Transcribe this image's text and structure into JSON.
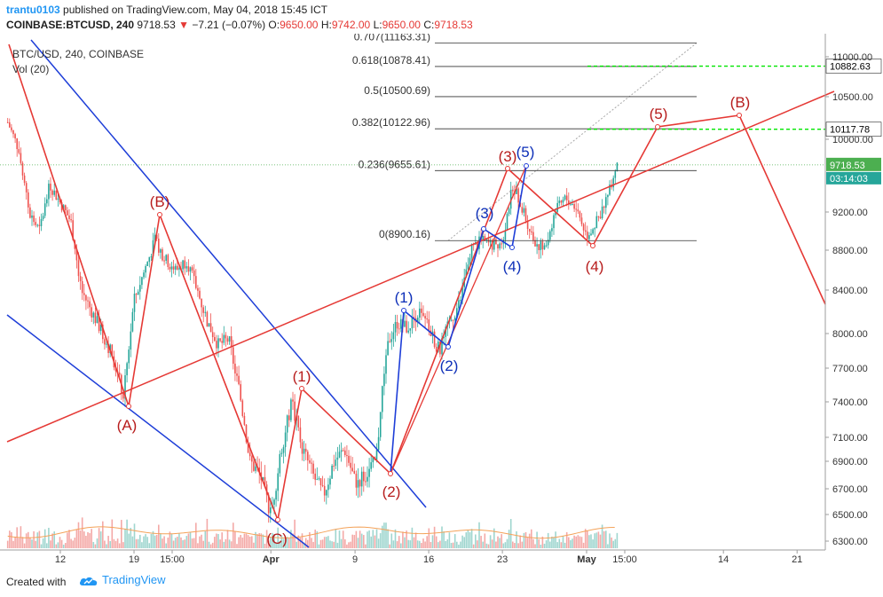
{
  "header": {
    "user": "trantu0103",
    "published_text": "published on TradingView.com, May 04, 2018 15:45 ICT",
    "symbol_label": "COINBASE:BTCUSD, 240",
    "last_price": "9718.53",
    "change_arrow": "▼",
    "change": "−7.21 (−0.07%)",
    "o_label": "O:",
    "o_value": "9650.00",
    "h_label": "H:",
    "h_value": "9742.00",
    "l_label": "L:",
    "l_value": "9650.00",
    "c_label": "C:",
    "c_value": "9718.53"
  },
  "legend": {
    "series": "BTC/USD, 240, COINBASE",
    "volume": "Vol (20)"
  },
  "footer": {
    "created_with": "Created with",
    "brand": "TradingView"
  },
  "colors": {
    "up": "#26a69a",
    "down": "#ef5350",
    "wave_red": "#e53935",
    "wave_blue": "#1e3ed8",
    "label_red": "#b71c1c",
    "label_blue": "#0d2fb8",
    "fib_line": "#555555",
    "target_green": "#00e600",
    "price_tag": "#4caf50",
    "time_tag": "#26a69a"
  },
  "chart_data": {
    "type": "candlestick",
    "y_axis": {
      "position": "right",
      "min": 6300,
      "max": 11000,
      "ticks": [
        6300,
        6500,
        6700,
        6900,
        7100,
        7400,
        7700,
        8000,
        8400,
        8800,
        9200,
        10000,
        10500,
        11000
      ],
      "tick_labels": [
        "6300.00",
        "6500.00",
        "6700.00",
        "6900.00",
        "7100.00",
        "7400.00",
        "7700.00",
        "8000.00",
        "8400.00",
        "8800.00",
        "9200.00",
        "10000.00",
        "10500.00",
        "11000.00"
      ]
    },
    "x_axis": {
      "tick_labels": [
        "12",
        "19",
        "15:00",
        "Apr",
        "9",
        "16",
        "23",
        "May",
        "15:00",
        "14",
        "21"
      ],
      "tick_dates": [
        "2018-03-12",
        "2018-03-19",
        "2018-03-22 15:00",
        "2018-04-01",
        "2018-04-09",
        "2018-04-16",
        "2018-04-23",
        "2018-05-01",
        "2018-05-04 15:00",
        "2018-05-14",
        "2018-05-21"
      ]
    },
    "price_path": [
      [
        "2018-03-07",
        10200
      ],
      [
        "2018-03-08",
        9900
      ],
      [
        "2018-03-09",
        9200
      ],
      [
        "2018-03-10",
        9000
      ],
      [
        "2018-03-11",
        9500
      ],
      [
        "2018-03-12",
        9300
      ],
      [
        "2018-03-13",
        9100
      ],
      [
        "2018-03-14",
        8400
      ],
      [
        "2018-03-15",
        8200
      ],
      [
        "2018-03-16",
        8000
      ],
      [
        "2018-03-17",
        7800
      ],
      [
        "2018-03-18",
        7450
      ],
      [
        "2018-03-19",
        8300
      ],
      [
        "2018-03-20",
        8600
      ],
      [
        "2018-03-21",
        8900
      ],
      [
        "2018-03-22",
        8700
      ],
      [
        "2018-03-23",
        8600
      ],
      [
        "2018-03-24",
        8700
      ],
      [
        "2018-03-25",
        8400
      ],
      [
        "2018-03-26",
        8100
      ],
      [
        "2018-03-27",
        7900
      ],
      [
        "2018-03-28",
        7950
      ],
      [
        "2018-03-29",
        7500
      ],
      [
        "2018-03-30",
        6900
      ],
      [
        "2018-03-31",
        6800
      ],
      [
        "2018-04-01",
        6500
      ],
      [
        "2018-04-02",
        7000
      ],
      [
        "2018-04-03",
        7400
      ],
      [
        "2018-04-04",
        7000
      ],
      [
        "2018-04-05",
        6800
      ],
      [
        "2018-04-06",
        6650
      ],
      [
        "2018-04-07",
        6900
      ],
      [
        "2018-04-08",
        7000
      ],
      [
        "2018-04-09",
        6750
      ],
      [
        "2018-04-10",
        6800
      ],
      [
        "2018-04-11",
        6900
      ],
      [
        "2018-04-12",
        7900
      ],
      [
        "2018-04-13",
        8100
      ],
      [
        "2018-04-14",
        8050
      ],
      [
        "2018-04-15",
        8200
      ],
      [
        "2018-04-16",
        8050
      ],
      [
        "2018-04-17",
        7850
      ],
      [
        "2018-04-18",
        8100
      ],
      [
        "2018-04-19",
        8300
      ],
      [
        "2018-04-20",
        8800
      ],
      [
        "2018-04-21",
        8900
      ],
      [
        "2018-04-22",
        8850
      ],
      [
        "2018-04-23",
        8900
      ],
      [
        "2018-04-24",
        9500
      ],
      [
        "2018-04-25",
        9200
      ],
      [
        "2018-04-26",
        8900
      ],
      [
        "2018-04-27",
        8800
      ],
      [
        "2018-04-28",
        9200
      ],
      [
        "2018-04-29",
        9350
      ],
      [
        "2018-04-30",
        9250
      ],
      [
        "2018-05-01",
        8950
      ],
      [
        "2018-05-02",
        9100
      ],
      [
        "2018-05-03",
        9400
      ],
      [
        "2018-05-04",
        9718.53
      ]
    ],
    "last_price_tag": "9718.53",
    "countdown_tag": "03:14:03",
    "fib_levels": [
      {
        "label": "0.707(11163.31)",
        "value": 11163.31
      },
      {
        "label": "0.618(10878.41)",
        "value": 10878.41
      },
      {
        "label": "0.5(10500.69)",
        "value": 10500.69
      },
      {
        "label": "0.382(10122.96)",
        "value": 10122.96
      },
      {
        "label": "0.236(9655.61)",
        "value": 9655.61
      },
      {
        "label": "0(8900.16)",
        "value": 8900.16
      }
    ],
    "target_levels": [
      {
        "label": "10882.63",
        "value": 10882.63
      },
      {
        "label": "10117.78",
        "value": 10117.78
      }
    ],
    "wave_labels_red": [
      "(A)",
      "(B)",
      "(C)",
      "(1)",
      "(2)",
      "(3)",
      "(4)",
      "(5)",
      "(B)"
    ],
    "wave_labels_blue": [
      "(1)",
      "(2)",
      "(3)",
      "(4)",
      "(5)"
    ]
  }
}
